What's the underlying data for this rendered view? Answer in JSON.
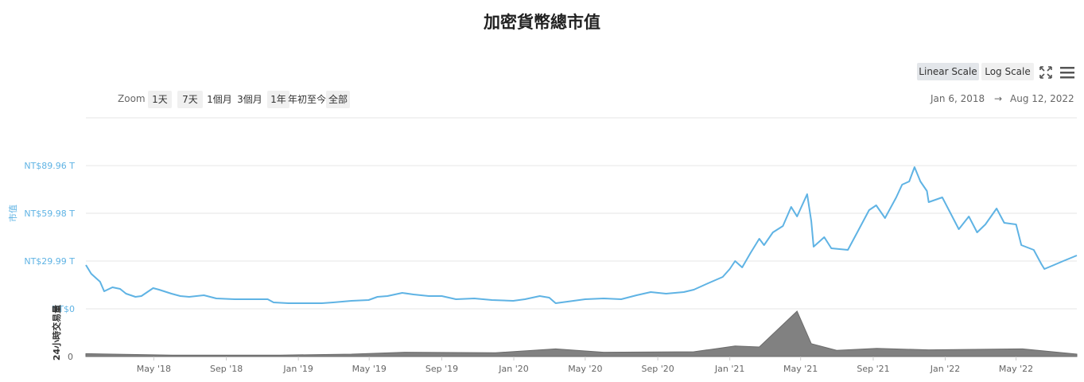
{
  "chart_data": {
    "type": "line",
    "title": "加密貨幣總市值",
    "date_range": {
      "start": "Jan 6, 2018",
      "arrow": "→",
      "end": "Aug 12, 2022"
    },
    "series": [
      {
        "name": "市值",
        "color": "#5fb3e4",
        "points": [
          [
            "2018-01-06",
            27.5
          ],
          [
            "2018-01-15",
            22.0
          ],
          [
            "2018-01-30",
            17.0
          ],
          [
            "2018-02-06",
            11.0
          ],
          [
            "2018-02-20",
            13.5
          ],
          [
            "2018-03-05",
            12.5
          ],
          [
            "2018-03-15",
            9.5
          ],
          [
            "2018-03-31",
            7.5
          ],
          [
            "2018-04-10",
            8.0
          ],
          [
            "2018-04-30",
            13.0
          ],
          [
            "2018-05-10",
            12.0
          ],
          [
            "2018-05-31",
            9.5
          ],
          [
            "2018-06-15",
            8.0
          ],
          [
            "2018-06-30",
            7.5
          ],
          [
            "2018-07-25",
            8.5
          ],
          [
            "2018-08-15",
            6.5
          ],
          [
            "2018-09-15",
            6.0
          ],
          [
            "2018-10-15",
            6.0
          ],
          [
            "2018-11-10",
            6.0
          ],
          [
            "2018-11-20",
            4.0
          ],
          [
            "2018-12-15",
            3.5
          ],
          [
            "2019-01-15",
            3.5
          ],
          [
            "2019-02-10",
            3.5
          ],
          [
            "2019-03-01",
            4.0
          ],
          [
            "2019-04-01",
            5.0
          ],
          [
            "2019-04-30",
            5.5
          ],
          [
            "2019-05-15",
            7.5
          ],
          [
            "2019-06-01",
            8.0
          ],
          [
            "2019-06-26",
            10.0
          ],
          [
            "2019-07-15",
            9.0
          ],
          [
            "2019-08-10",
            8.0
          ],
          [
            "2019-09-01",
            8.0
          ],
          [
            "2019-09-25",
            6.0
          ],
          [
            "2019-10-26",
            6.5
          ],
          [
            "2019-11-25",
            5.5
          ],
          [
            "2019-12-31",
            5.0
          ],
          [
            "2020-01-20",
            6.0
          ],
          [
            "2020-02-14",
            8.0
          ],
          [
            "2020-03-01",
            7.0
          ],
          [
            "2020-03-12",
            3.5
          ],
          [
            "2020-04-01",
            4.5
          ],
          [
            "2020-05-01",
            6.0
          ],
          [
            "2020-06-01",
            6.5
          ],
          [
            "2020-07-01",
            6.0
          ],
          [
            "2020-07-27",
            8.5
          ],
          [
            "2020-08-20",
            10.5
          ],
          [
            "2020-09-15",
            9.5
          ],
          [
            "2020-10-15",
            10.5
          ],
          [
            "2020-11-01",
            12.0
          ],
          [
            "2020-11-25",
            16.0
          ],
          [
            "2020-12-20",
            20.0
          ],
          [
            "2021-01-01",
            25.0
          ],
          [
            "2021-01-10",
            30.0
          ],
          [
            "2021-01-22",
            26.0
          ],
          [
            "2021-02-05",
            35.0
          ],
          [
            "2021-02-20",
            44.0
          ],
          [
            "2021-02-28",
            40.0
          ],
          [
            "2021-03-15",
            48.0
          ],
          [
            "2021-04-01",
            52.0
          ],
          [
            "2021-04-15",
            64.0
          ],
          [
            "2021-04-25",
            58.0
          ],
          [
            "2021-05-12",
            72.0
          ],
          [
            "2021-05-19",
            55.0
          ],
          [
            "2021-05-23",
            39.0
          ],
          [
            "2021-06-10",
            45.0
          ],
          [
            "2021-06-22",
            38.0
          ],
          [
            "2021-07-20",
            37.0
          ],
          [
            "2021-08-05",
            48.0
          ],
          [
            "2021-08-25",
            62.0
          ],
          [
            "2021-09-06",
            65.0
          ],
          [
            "2021-09-21",
            57.0
          ],
          [
            "2021-10-10",
            70.0
          ],
          [
            "2021-10-20",
            78.0
          ],
          [
            "2021-11-01",
            80.0
          ],
          [
            "2021-11-10",
            89.0
          ],
          [
            "2021-11-20",
            80.0
          ],
          [
            "2021-12-01",
            74.0
          ],
          [
            "2021-12-04",
            67.0
          ],
          [
            "2021-12-27",
            70.0
          ],
          [
            "2022-01-10",
            60.0
          ],
          [
            "2022-01-24",
            50.0
          ],
          [
            "2022-02-10",
            58.0
          ],
          [
            "2022-02-24",
            48.0
          ],
          [
            "2022-03-10",
            53.0
          ],
          [
            "2022-03-29",
            63.0
          ],
          [
            "2022-04-11",
            54.0
          ],
          [
            "2022-05-01",
            53.0
          ],
          [
            "2022-05-10",
            40.0
          ],
          [
            "2022-05-31",
            37.0
          ],
          [
            "2022-06-13",
            28.0
          ],
          [
            "2022-06-18",
            25.0
          ],
          [
            "2022-07-01",
            27.0
          ],
          [
            "2022-07-20",
            30.0
          ],
          [
            "2022-08-12",
            33.5
          ]
        ]
      },
      {
        "name": "24小時交易量",
        "color": "#6b6b6b",
        "points": [
          [
            "2018-01-06",
            0.6
          ],
          [
            "2018-06-01",
            0.3
          ],
          [
            "2018-12-01",
            0.3
          ],
          [
            "2019-04-01",
            0.5
          ],
          [
            "2019-07-01",
            0.9
          ],
          [
            "2019-12-01",
            0.8
          ],
          [
            "2020-03-12",
            1.6
          ],
          [
            "2020-06-01",
            0.9
          ],
          [
            "2020-11-01",
            1.0
          ],
          [
            "2021-01-10",
            2.2
          ],
          [
            "2021-02-20",
            2.0
          ],
          [
            "2021-04-25",
            9.5
          ],
          [
            "2021-05-19",
            2.7
          ],
          [
            "2021-07-01",
            1.3
          ],
          [
            "2021-09-07",
            1.7
          ],
          [
            "2021-12-04",
            1.4
          ],
          [
            "2022-05-12",
            1.6
          ],
          [
            "2022-08-12",
            0.5
          ]
        ]
      }
    ],
    "y_axis_price": {
      "label": "市值",
      "ticks": [
        "NT$0",
        "NT$29.99 T",
        "NT$59.98 T",
        "NT$89.96 T"
      ],
      "values": [
        0,
        29.99,
        59.98,
        89.96
      ],
      "ylim": [
        0,
        90
      ]
    },
    "y_axis_volume": {
      "label": "24小時交易量",
      "ticks": [
        "0"
      ]
    },
    "x_ticks": [
      [
        "2018-05-01",
        "May '18"
      ],
      [
        "2018-09-01",
        "Sep '18"
      ],
      [
        "2019-01-01",
        "Jan '19"
      ],
      [
        "2019-05-01",
        "May '19"
      ],
      [
        "2019-09-01",
        "Sep '19"
      ],
      [
        "2020-01-01",
        "Jan '20"
      ],
      [
        "2020-05-01",
        "May '20"
      ],
      [
        "2020-09-01",
        "Sep '20"
      ],
      [
        "2021-01-01",
        "Jan '21"
      ],
      [
        "2021-05-01",
        "May '21"
      ],
      [
        "2021-09-01",
        "Sep '21"
      ],
      [
        "2022-01-01",
        "Jan '22"
      ],
      [
        "2022-05-01",
        "May '22"
      ]
    ],
    "grid": true
  },
  "toolbar": {
    "zoom_label": "Zoom",
    "zoom_buttons": [
      "1天",
      "7天",
      "1個月",
      "3個月",
      "1年",
      "年初至今",
      "全部"
    ],
    "scale_buttons": [
      "Linear Scale",
      "Log Scale"
    ],
    "active_scale": "Linear Scale"
  },
  "icons": [
    "fullscreen-icon",
    "menu-icon"
  ]
}
